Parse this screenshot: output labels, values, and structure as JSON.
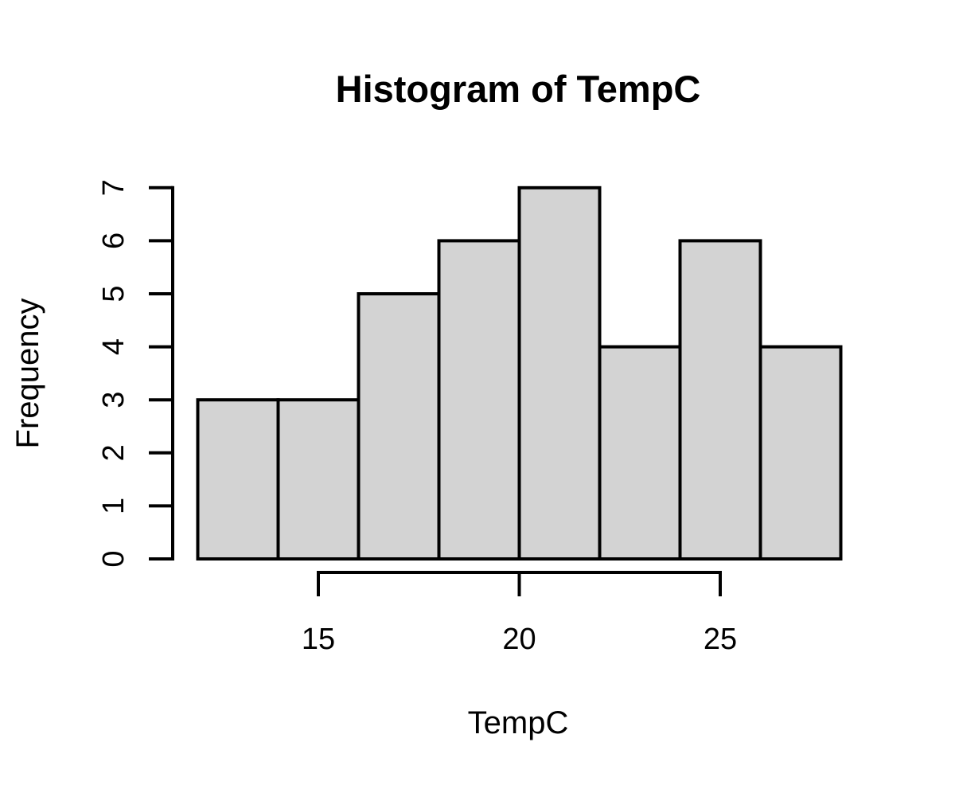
{
  "chart_data": {
    "type": "bar",
    "subtype": "histogram",
    "title": "Histogram of TempC",
    "xlabel": "TempC",
    "ylabel": "Frequency",
    "bin_edges": [
      12,
      14,
      16,
      18,
      20,
      22,
      24,
      26,
      28
    ],
    "categories": [
      "12-14",
      "14-16",
      "16-18",
      "18-20",
      "20-22",
      "22-24",
      "24-26",
      "26-28"
    ],
    "values": [
      3,
      3,
      5,
      6,
      7,
      4,
      6,
      4
    ],
    "x_ticks": [
      15,
      20,
      25
    ],
    "y_ticks": [
      0,
      1,
      2,
      3,
      4,
      5,
      6,
      7
    ],
    "xlim": [
      15,
      25
    ],
    "ylim": [
      0,
      7
    ],
    "grid": false,
    "legend": null,
    "colors": {
      "bar_fill": "#d3d3d3",
      "bar_stroke": "#000000",
      "axis": "#000000",
      "background": "#ffffff"
    }
  }
}
